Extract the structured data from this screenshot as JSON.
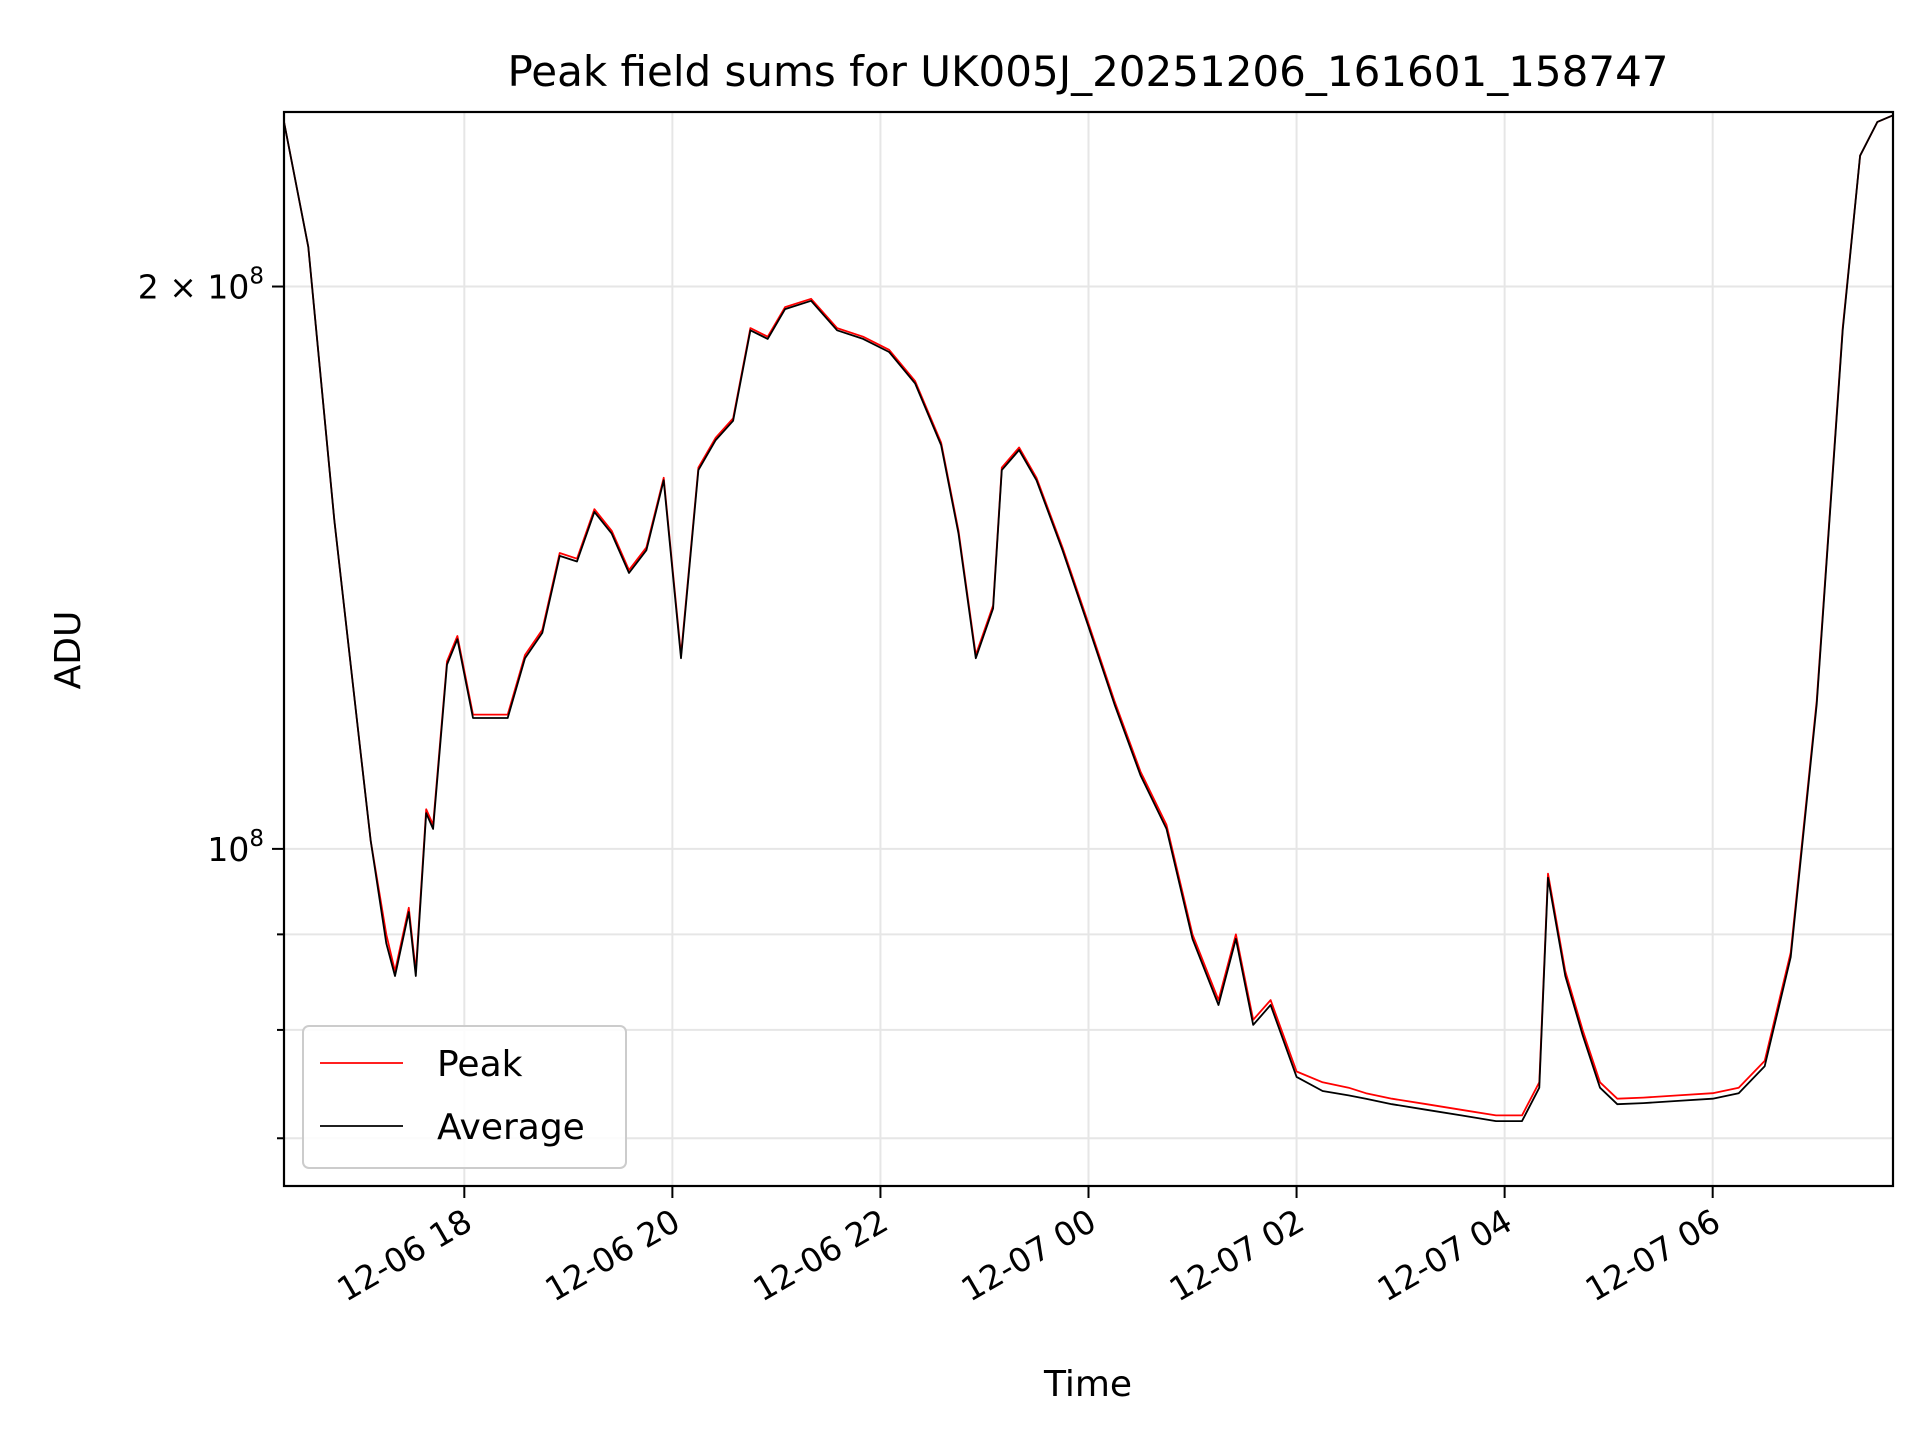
{
  "chart_data": {
    "type": "line",
    "title": "Peak field sums for UK005J_20251206_161601_158747",
    "xlabel": "Time",
    "ylabel": "ADU",
    "yscale": "log",
    "grid": true,
    "legend_placement": "lower-left",
    "xlim": [
      "2025-12-06 16:16",
      "2025-12-07 07:44"
    ],
    "ylim": [
      66000000,
      248000000
    ],
    "x_ticks": [
      {
        "label": "12-06 18",
        "value": "2025-12-06 18:00"
      },
      {
        "label": "12-06 20",
        "value": "2025-12-06 20:00"
      },
      {
        "label": "12-06 22",
        "value": "2025-12-06 22:00"
      },
      {
        "label": "12-07 00",
        "value": "2025-12-07 00:00"
      },
      {
        "label": "12-07 02",
        "value": "2025-12-07 02:00"
      },
      {
        "label": "12-07 04",
        "value": "2025-12-07 04:00"
      },
      {
        "label": "12-07 06",
        "value": "2025-12-07 06:00"
      }
    ],
    "y_major_ticks": [
      {
        "label_base": "10",
        "label_exp": "8",
        "label_coef": "",
        "value": 100000000
      },
      {
        "label_base": "10",
        "label_exp": "8",
        "label_coef": "2 × ",
        "value": 200000000
      }
    ],
    "y_minor_ticks": [
      70000000,
      80000000,
      90000000
    ],
    "x": [
      "2025-12-06 16:16",
      "2025-12-06 16:30",
      "2025-12-06 16:45",
      "2025-12-06 17:00",
      "2025-12-06 17:06",
      "2025-12-06 17:15",
      "2025-12-06 17:20",
      "2025-12-06 17:28",
      "2025-12-06 17:32",
      "2025-12-06 17:38",
      "2025-12-06 17:42",
      "2025-12-06 17:50",
      "2025-12-06 17:56",
      "2025-12-06 18:05",
      "2025-12-06 18:15",
      "2025-12-06 18:25",
      "2025-12-06 18:35",
      "2025-12-06 18:45",
      "2025-12-06 18:55",
      "2025-12-06 19:05",
      "2025-12-06 19:15",
      "2025-12-06 19:25",
      "2025-12-06 19:35",
      "2025-12-06 19:45",
      "2025-12-06 19:55",
      "2025-12-06 20:05",
      "2025-12-06 20:15",
      "2025-12-06 20:25",
      "2025-12-06 20:35",
      "2025-12-06 20:45",
      "2025-12-06 20:55",
      "2025-12-06 21:05",
      "2025-12-06 21:20",
      "2025-12-06 21:35",
      "2025-12-06 21:50",
      "2025-12-06 22:05",
      "2025-12-06 22:20",
      "2025-12-06 22:35",
      "2025-12-06 22:45",
      "2025-12-06 22:55",
      "2025-12-06 23:05",
      "2025-12-06 23:10",
      "2025-12-06 23:20",
      "2025-12-06 23:30",
      "2025-12-06 23:45",
      "2025-12-07 00:00",
      "2025-12-07 00:15",
      "2025-12-07 00:30",
      "2025-12-07 00:45",
      "2025-12-07 01:00",
      "2025-12-07 01:15",
      "2025-12-07 01:25",
      "2025-12-07 01:35",
      "2025-12-07 01:45",
      "2025-12-07 02:00",
      "2025-12-07 02:15",
      "2025-12-07 02:30",
      "2025-12-07 02:40",
      "2025-12-07 02:55",
      "2025-12-07 03:15",
      "2025-12-07 03:35",
      "2025-12-07 03:55",
      "2025-12-07 04:10",
      "2025-12-07 04:20",
      "2025-12-07 04:25",
      "2025-12-07 04:35",
      "2025-12-07 04:45",
      "2025-12-07 04:55",
      "2025-12-07 05:05",
      "2025-12-07 05:20",
      "2025-12-07 05:40",
      "2025-12-07 06:00",
      "2025-12-07 06:15",
      "2025-12-07 06:30",
      "2025-12-07 06:45",
      "2025-12-07 07:00",
      "2025-12-07 07:15",
      "2025-12-07 07:25",
      "2025-12-07 07:35",
      "2025-12-07 07:44"
    ],
    "series": [
      {
        "name": "Peak",
        "color": "#ff0000",
        "values": [
          245000000,
          210000000,
          150000000,
          113000000,
          101000000,
          90000000,
          86000000,
          93000000,
          86000000,
          105000000,
          103000000,
          126000000,
          130000000,
          118000000,
          118000000,
          118000000,
          127000000,
          131000000,
          144000000,
          143000000,
          152000000,
          148000000,
          141000000,
          145000000,
          158000000,
          127000000,
          160000000,
          166000000,
          170000000,
          190000000,
          188000000,
          195000000,
          197000000,
          190000000,
          188000000,
          185000000,
          178000000,
          165000000,
          148000000,
          127000000,
          135000000,
          160000000,
          164000000,
          158000000,
          145000000,
          132000000,
          120000000,
          110000000,
          103000000,
          90000000,
          83000000,
          90000000,
          81000000,
          83000000,
          76000000,
          75000000,
          74500000,
          74000000,
          73500000,
          73000000,
          72500000,
          72000000,
          72000000,
          75000000,
          97000000,
          86000000,
          80000000,
          75000000,
          73500000,
          73600000,
          73800000,
          74000000,
          74500000,
          77000000,
          88000000,
          120000000,
          190000000,
          235000000,
          245000000,
          247000000
        ]
      },
      {
        "name": "Average",
        "color": "#000000",
        "values": [
          245000000,
          210000000,
          150000000,
          113000000,
          101000000,
          89000000,
          85500000,
          92500000,
          85500000,
          104500000,
          102500000,
          125500000,
          129500000,
          117500000,
          117500000,
          117500000,
          126500000,
          130500000,
          143500000,
          142500000,
          151500000,
          147500000,
          140500000,
          144500000,
          157500000,
          126500000,
          159500000,
          165500000,
          169500000,
          189500000,
          187500000,
          194500000,
          196500000,
          189500000,
          187500000,
          184500000,
          177500000,
          164500000,
          147500000,
          126500000,
          134500000,
          159500000,
          163500000,
          157500000,
          144500000,
          131500000,
          119500000,
          109500000,
          102500000,
          89500000,
          82500000,
          89500000,
          80500000,
          82500000,
          75500000,
          74200000,
          73800000,
          73500000,
          73000000,
          72500000,
          72000000,
          71500000,
          71500000,
          74500000,
          96500000,
          85500000,
          79500000,
          74500000,
          73000000,
          73100000,
          73300000,
          73500000,
          74000000,
          76500000,
          87500000,
          119500000,
          189500000,
          235000000,
          245000000,
          247000000
        ]
      }
    ]
  }
}
